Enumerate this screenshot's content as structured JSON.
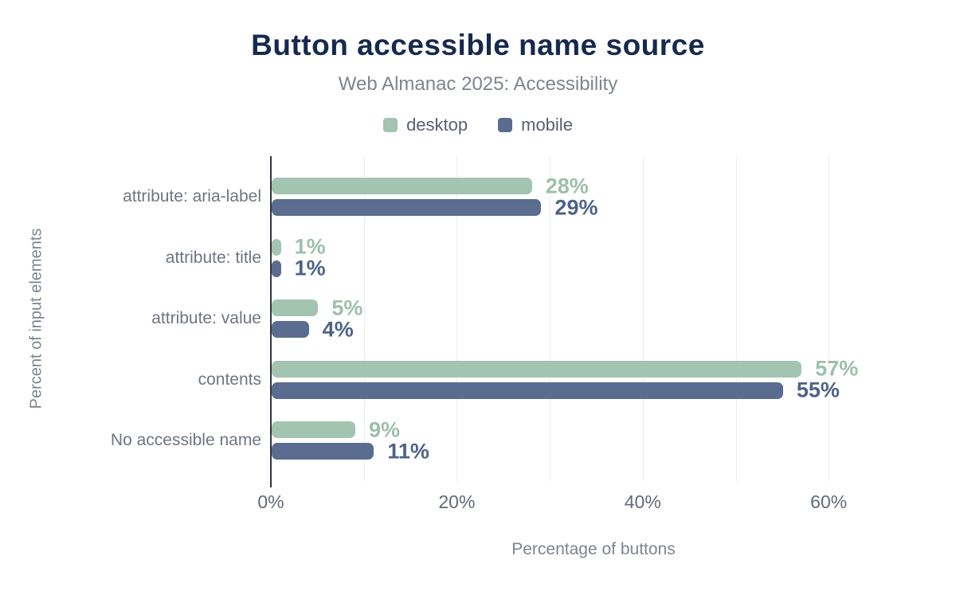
{
  "header": {
    "title": "Button accessible name source",
    "subtitle": "Web Almanac 2025: Accessibility"
  },
  "axes": {
    "y_title": "Percent of input elements",
    "x_title": "Percentage of buttons"
  },
  "colors": {
    "desktop": "#a3c4b0",
    "mobile": "#5a6d90",
    "desktop_label": "#9cc0ac",
    "mobile_label": "#4d6389",
    "title": "#152a4e",
    "axis_text": "#7d848f"
  },
  "chart_data": {
    "type": "bar",
    "orientation": "horizontal",
    "title": "Button accessible name source",
    "subtitle": "Web Almanac 2025: Accessibility",
    "categories": [
      "attribute: aria-label",
      "attribute: title",
      "attribute: value",
      "contents",
      "No accessible name"
    ],
    "series": [
      {
        "name": "desktop",
        "color": "#a3c4b0",
        "label_color": "#9cc0ac",
        "values": [
          28,
          1,
          5,
          57,
          9
        ],
        "labels": [
          "28%",
          "1%",
          "5%",
          "57%",
          "9%"
        ]
      },
      {
        "name": "mobile",
        "color": "#5a6d90",
        "label_color": "#4d6389",
        "values": [
          29,
          1,
          4,
          55,
          11
        ],
        "labels": [
          "29%",
          "1%",
          "4%",
          "55%",
          "11%"
        ]
      }
    ],
    "xlabel": "Percentage of buttons",
    "ylabel": "Percent of input elements",
    "xlim": [
      0,
      68
    ],
    "x_ticks": [
      {
        "value": 0,
        "label": "0%"
      },
      {
        "value": 20,
        "label": "20%"
      },
      {
        "value": 40,
        "label": "40%"
      },
      {
        "value": 60,
        "label": "60%"
      }
    ],
    "gridlines": [
      10,
      20,
      30,
      40,
      50,
      60
    ],
    "grid": true,
    "legend_position": "top"
  }
}
